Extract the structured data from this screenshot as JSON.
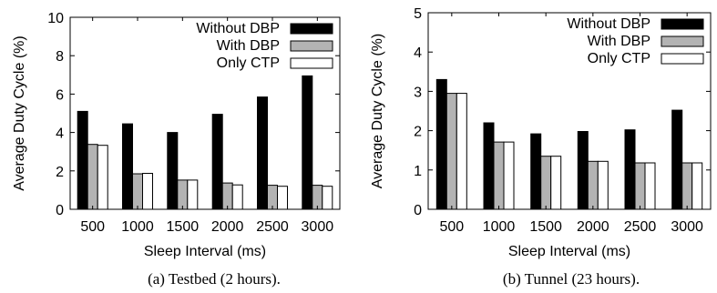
{
  "chart_data": [
    {
      "type": "bar",
      "caption": "(a)  Testbed (2 hours).",
      "categories": [
        "500",
        "1000",
        "1500",
        "2000",
        "2500",
        "3000"
      ],
      "xlabel": "Sleep Interval (ms)",
      "ylabel": "Average Duty Cycle (%)",
      "ylim": [
        0,
        10
      ],
      "yticks": [
        0,
        2,
        4,
        6,
        8,
        10
      ],
      "grid": false,
      "legend": "top-right",
      "series": [
        {
          "name": "Without DBP",
          "values": [
            5.1,
            4.45,
            4.0,
            4.95,
            5.85,
            6.95
          ],
          "color": "#000000"
        },
        {
          "name": "With DBP",
          "values": [
            3.38,
            1.85,
            1.52,
            1.37,
            1.25,
            1.25
          ],
          "color": "#b3b3b3"
        },
        {
          "name": "Only CTP",
          "values": [
            3.33,
            1.87,
            1.52,
            1.27,
            1.2,
            1.2
          ],
          "color": "#ffffff"
        }
      ]
    },
    {
      "type": "bar",
      "caption": "(b)  Tunnel (23 hours).",
      "categories": [
        "500",
        "1000",
        "1500",
        "2000",
        "2500",
        "3000"
      ],
      "xlabel": "Sleep Interval (ms)",
      "ylabel": "Average Duty Cycle (%)",
      "ylim": [
        0,
        5
      ],
      "yticks": [
        0,
        1,
        2,
        3,
        4,
        5
      ],
      "grid": false,
      "legend": "top-right",
      "series": [
        {
          "name": "Without DBP",
          "values": [
            3.3,
            2.2,
            1.92,
            1.98,
            2.02,
            2.52
          ],
          "color": "#000000"
        },
        {
          "name": "With DBP",
          "values": [
            2.95,
            1.71,
            1.35,
            1.22,
            1.18,
            1.18
          ],
          "color": "#b3b3b3"
        },
        {
          "name": "Only CTP",
          "values": [
            2.95,
            1.71,
            1.35,
            1.22,
            1.18,
            1.18
          ],
          "color": "#ffffff"
        }
      ]
    }
  ]
}
